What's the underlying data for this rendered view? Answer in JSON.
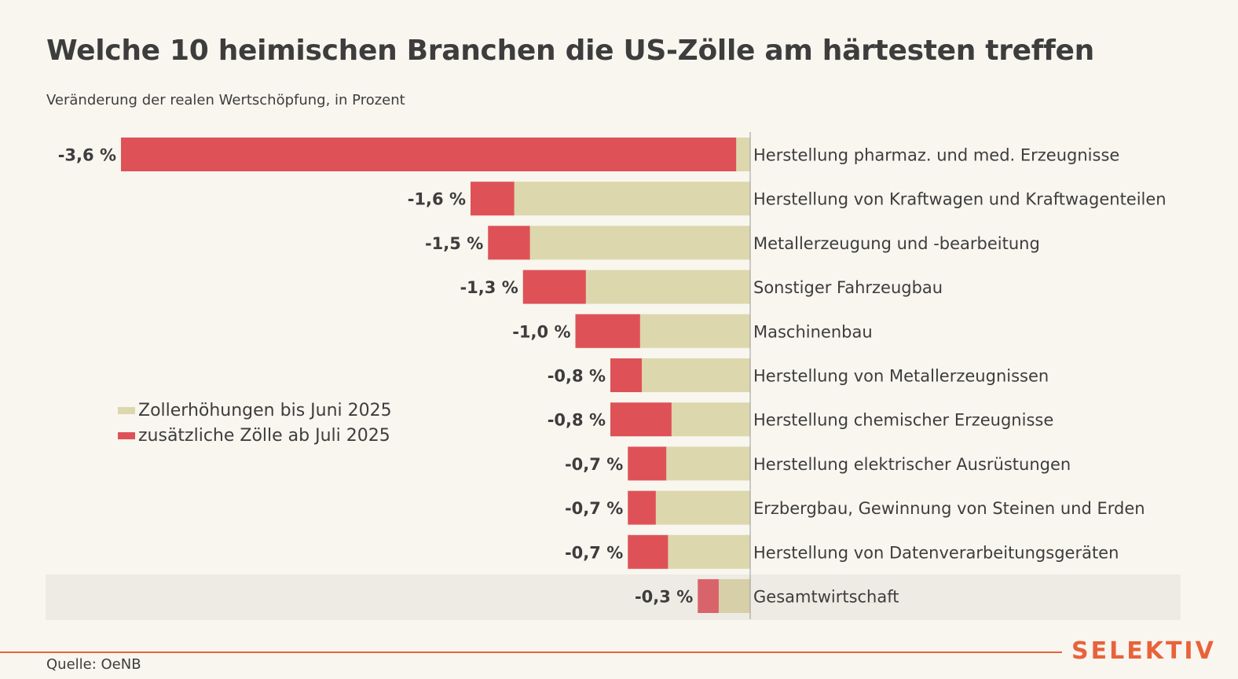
{
  "title": "Welche 10 heimischen Branchen die US-Zölle am härtesten treffen",
  "subtitle": "Veränderung der realen Wertschöpfung, in Prozent",
  "legend": [
    {
      "name": "Zollerhöhungen bis Juni 2025",
      "color": "#ddd7ad"
    },
    {
      "name": "zusätzliche Zölle ab Juli 2025",
      "color": "#de5257"
    }
  ],
  "source": "Quelle: OeNB",
  "brand": "SELEKTIV",
  "colors": {
    "series_june": "#ddd7ad",
    "series_july": "#de5257",
    "total_june": "#d7cfa8",
    "total_july": "#d9636a",
    "highlight_band": "#edebe4",
    "axis": "#9a9a9a",
    "accent": "#e8633b"
  },
  "chart_data": {
    "type": "bar",
    "orientation": "horizontal",
    "stacked": true,
    "categories": [
      "Herstellung pharmaz. und med. Erzeugnisse",
      "Herstellung von Kraftwagen und Kraftwagenteilen",
      "Metallerzeugung und -bearbeitung",
      "Sonstiger Fahrzeugbau",
      "Maschinenbau",
      "Herstellung von Metallerzeugnissen",
      "Herstellung chemischer Erzeugnisse",
      "Herstellung elektrischer Ausrüstungen",
      "Erzbergbau, Gewinnung von Steinen und Erden",
      "Herstellung von Datenverarbeitungsgeräten",
      "Gesamtwirtschaft"
    ],
    "value_labels": [
      "-3,6 %",
      "-1,6 %",
      "-1,5 %",
      "-1,3 %",
      "-1,0 %",
      "-0,8 %",
      "-0,8 %",
      "-0,7 %",
      "-0,7 %",
      "-0,7 %",
      "-0,3 %"
    ],
    "totals": [
      -3.6,
      -1.6,
      -1.5,
      -1.3,
      -1.0,
      -0.8,
      -0.8,
      -0.7,
      -0.7,
      -0.7,
      -0.3
    ],
    "series": [
      {
        "name": "Zollerhöhungen bis Juni 2025",
        "values": [
          -0.08,
          -1.35,
          -1.26,
          -0.94,
          -0.63,
          -0.62,
          -0.45,
          -0.48,
          -0.54,
          -0.47,
          -0.18
        ]
      },
      {
        "name": "zusätzliche Zölle ab Juli 2025",
        "values": [
          -3.52,
          -0.25,
          -0.24,
          -0.36,
          -0.37,
          -0.18,
          -0.35,
          -0.22,
          -0.16,
          -0.23,
          -0.12
        ]
      }
    ],
    "highlighted_category": "Gesamtwirtschaft",
    "xlim": [
      -3.6,
      0
    ],
    "grid": false,
    "legend_position": "left"
  }
}
